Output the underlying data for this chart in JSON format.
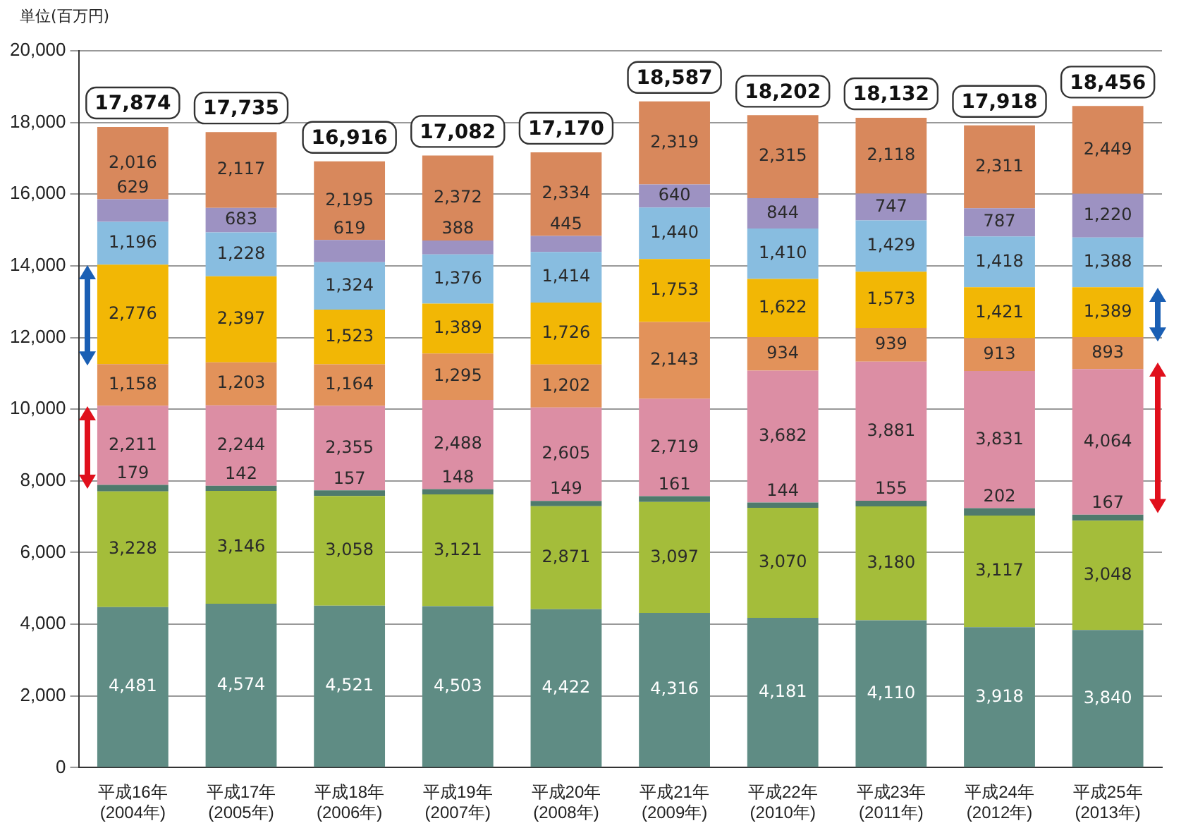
{
  "chart_data": {
    "type": "bar",
    "stacked": true,
    "ylabel": "単位(百万円)",
    "categories": [
      "平成16年(2004年)",
      "平成17年(2005年)",
      "平成18年(2006年)",
      "平成19年(2007年)",
      "平成20年(2008年)",
      "平成21年(2009年)",
      "平成22年(2010年)",
      "平成23年(2011年)",
      "平成24年(2012年)",
      "平成25年(2013年)"
    ],
    "series": [
      {
        "color": "#5f8c84",
        "values": [
          4481,
          4574,
          4521,
          4503,
          4422,
          4316,
          4181,
          4110,
          3918,
          3840
        ],
        "value_labels": [
          "4,481",
          "4,574",
          "4,521",
          "4,503",
          "4,422",
          "4,316",
          "4,181",
          "4,110",
          "3,918",
          "3,840"
        ]
      },
      {
        "color": "#a4bd3a",
        "values": [
          3228,
          3146,
          3058,
          3121,
          2871,
          3097,
          3070,
          3180,
          3117,
          3048
        ],
        "value_labels": [
          "3,228",
          "3,146",
          "3,058",
          "3,121",
          "2,871",
          "3,097",
          "3,070",
          "3,180",
          "3,117",
          "3,048"
        ]
      },
      {
        "color": "#4f7a6c",
        "values": [
          179,
          142,
          157,
          148,
          149,
          161,
          144,
          155,
          202,
          167
        ],
        "value_labels": [
          "179",
          "142",
          "157",
          "148",
          "149",
          "161",
          "144",
          "155",
          "202",
          "167"
        ]
      },
      {
        "color": "#dc8ea4",
        "values": [
          2211,
          2244,
          2355,
          2488,
          2605,
          2719,
          3682,
          3881,
          3831,
          4064
        ],
        "value_labels": [
          "2,211",
          "2,244",
          "2,355",
          "2,488",
          "2,605",
          "2,719",
          "3,682",
          "3,881",
          "3,831",
          "4,064"
        ]
      },
      {
        "color": "#e2925a",
        "values": [
          1158,
          1203,
          1164,
          1295,
          1202,
          2143,
          934,
          939,
          913,
          893
        ],
        "value_labels": [
          "1,158",
          "1,203",
          "1,164",
          "1,295",
          "1,202",
          "2,143",
          "934",
          "939",
          "913",
          "893"
        ]
      },
      {
        "color": "#f2b705",
        "values": [
          2776,
          2397,
          1523,
          1389,
          1726,
          1753,
          1622,
          1573,
          1421,
          1389
        ],
        "value_labels": [
          "2,776",
          "2,397",
          "1,523",
          "1,389",
          "1,726",
          "1,753",
          "1,622",
          "1,573",
          "1,421",
          "1,389"
        ]
      },
      {
        "color": "#88bde0",
        "values": [
          1196,
          1228,
          1324,
          1376,
          1414,
          1440,
          1410,
          1429,
          1418,
          1388
        ],
        "value_labels": [
          "1,196",
          "1,228",
          "1,324",
          "1,376",
          "1,414",
          "1,440",
          "1,410",
          "1,429",
          "1,418",
          "1,388"
        ]
      },
      {
        "color": "#9d92c2",
        "values": [
          629,
          683,
          619,
          388,
          445,
          640,
          844,
          747,
          787,
          1220
        ],
        "value_labels": [
          "629",
          "683",
          "619",
          "388",
          "445",
          "640",
          "844",
          "747",
          "787",
          "1,220"
        ]
      },
      {
        "color": "#d8885c",
        "values": [
          2016,
          2117,
          2195,
          2372,
          2334,
          2319,
          2315,
          2118,
          2311,
          2449
        ],
        "value_labels": [
          "2,016",
          "2,117",
          "2,195",
          "2,372",
          "2,334",
          "2,319",
          "2,315",
          "2,118",
          "2,311",
          "2,449"
        ]
      }
    ],
    "totals": [
      "17,874",
      "17,735",
      "16,916",
      "17,082",
      "17,170",
      "18,587",
      "18,202",
      "18,132",
      "17,918",
      "18,456"
    ],
    "ylim": [
      0,
      20000
    ],
    "yticks": [
      {
        "value": 0,
        "label": "0"
      },
      {
        "value": 2000,
        "label": "2,000"
      },
      {
        "value": 4000,
        "label": "4,000"
      },
      {
        "value": 6000,
        "label": "6,000"
      },
      {
        "value": 8000,
        "label": "8,000"
      },
      {
        "value": 10000,
        "label": "10,000"
      },
      {
        "value": 12000,
        "label": "12,000"
      },
      {
        "value": 14000,
        "label": "14,000"
      },
      {
        "value": 16000,
        "label": "16,000"
      },
      {
        "value": 18000,
        "label": "18,000"
      },
      {
        "value": 20000,
        "label": "20,000"
      }
    ],
    "grid": "y",
    "legend": false
  }
}
